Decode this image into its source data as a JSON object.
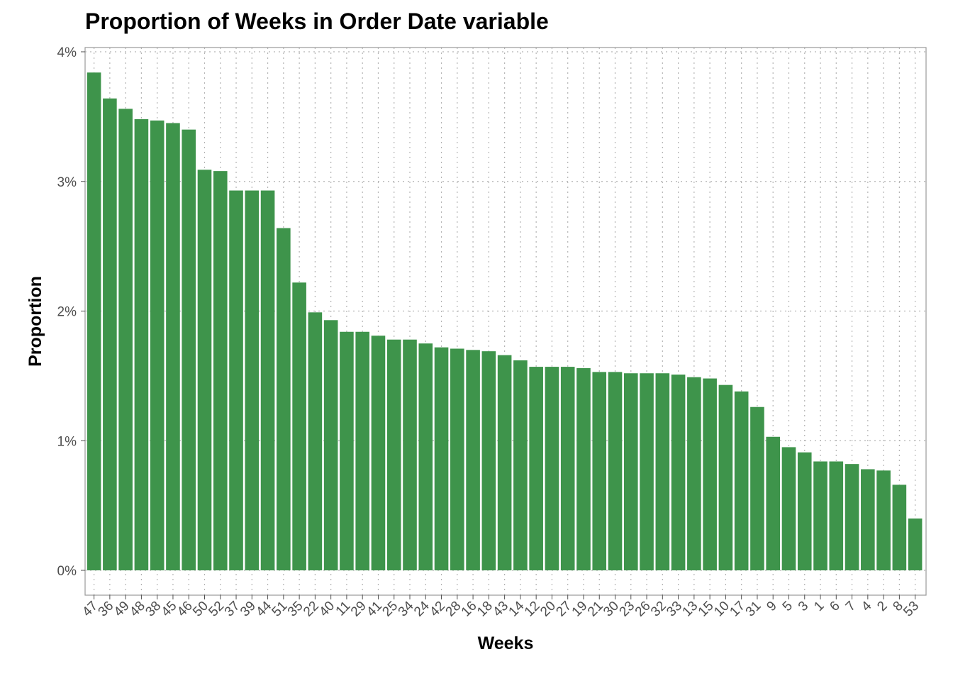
{
  "chart_data": {
    "type": "bar",
    "title": "Proportion of Weeks in Order Date variable",
    "xlabel": "Weeks",
    "ylabel": "Proportion",
    "categories": [
      "47",
      "36",
      "49",
      "48",
      "38",
      "45",
      "46",
      "50",
      "52",
      "37",
      "39",
      "44",
      "51",
      "35",
      "22",
      "40",
      "11",
      "29",
      "41",
      "25",
      "34",
      "24",
      "42",
      "28",
      "16",
      "18",
      "43",
      "14",
      "12",
      "20",
      "27",
      "19",
      "21",
      "30",
      "23",
      "26",
      "32",
      "33",
      "13",
      "15",
      "10",
      "17",
      "31",
      "9",
      "5",
      "3",
      "1",
      "6",
      "7",
      "4",
      "2",
      "8",
      "53"
    ],
    "values": [
      3.84,
      3.64,
      3.56,
      3.48,
      3.47,
      3.45,
      3.4,
      3.09,
      3.08,
      2.93,
      2.93,
      2.93,
      2.64,
      2.22,
      1.99,
      1.93,
      1.84,
      1.84,
      1.81,
      1.78,
      1.78,
      1.75,
      1.72,
      1.71,
      1.7,
      1.69,
      1.66,
      1.62,
      1.57,
      1.57,
      1.57,
      1.56,
      1.53,
      1.53,
      1.52,
      1.52,
      1.52,
      1.51,
      1.49,
      1.48,
      1.43,
      1.38,
      1.26,
      1.03,
      0.95,
      0.91,
      0.84,
      0.84,
      0.82,
      0.78,
      0.77,
      0.66,
      0.4
    ],
    "value_unit": "%",
    "ylim": [
      0,
      4
    ],
    "yticks": [
      "0%",
      "1%",
      "2%",
      "3%",
      "4%"
    ],
    "grid": "dotted",
    "colors": {
      "bar": "#3e944b",
      "grid": "#b3b3b3",
      "border": "#999999"
    }
  }
}
